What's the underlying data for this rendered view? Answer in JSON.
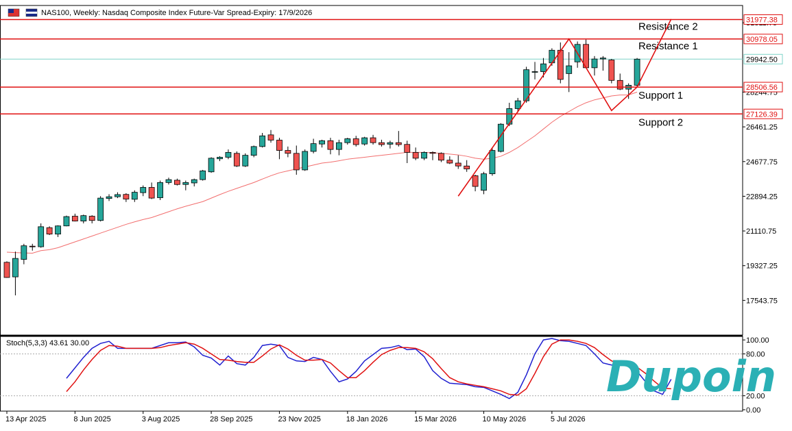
{
  "header": {
    "title": "NAS100, Weekly:  Nasdaq Composite Index Future-Var Spread-Expiry: 17/9/2026"
  },
  "colors": {
    "bull": "#26a69a",
    "bear": "#ef5350",
    "level_line": "#e01010",
    "ma_line": "#f26d6d",
    "current_line": "#7fd3c8",
    "stoch_main": "#1f1fd0",
    "stoch_signal": "#e01010",
    "logo": "#2bb0b5"
  },
  "logo": {
    "text": "Dupoin"
  },
  "chart_data": [
    {
      "type": "candlestick",
      "title": "NAS100, Weekly:  Nasdaq Composite Index Future-Var Spread-Expiry: 17/9/2026",
      "ylim": [
        15760,
        32700
      ],
      "y_ticks": [
        {
          "value": 31811.75,
          "label": "31811.75"
        },
        {
          "value": 28244.75,
          "label": "28244.75"
        },
        {
          "value": 26461.25,
          "label": "26461.25"
        },
        {
          "value": 24677.75,
          "label": "24677.75"
        },
        {
          "value": 22894.25,
          "label": "22894.25"
        },
        {
          "value": 21110.75,
          "label": "21110.75"
        },
        {
          "value": 19327.25,
          "label": "19327.25"
        },
        {
          "value": 17543.75,
          "label": "17543.75"
        }
      ],
      "x_ticks": [
        {
          "index": 0,
          "label": "13 Apr 2025"
        },
        {
          "index": 8,
          "label": "8 Jun 2025"
        },
        {
          "index": 16,
          "label": "3 Aug 2025"
        },
        {
          "index": 24,
          "label": "28 Sep 2025"
        },
        {
          "index": 32,
          "label": "23 Nov 2025"
        },
        {
          "index": 40,
          "label": "18 Jan 2026"
        },
        {
          "index": 48,
          "label": "15 Mar 2026"
        },
        {
          "index": 56,
          "label": "10 May 2026"
        },
        {
          "index": 64,
          "label": "5 Jul 2026"
        }
      ],
      "candles": [
        {
          "o": 19500,
          "h": 19550,
          "l": 18700,
          "c": 18720
        },
        {
          "o": 18750,
          "h": 20050,
          "l": 17800,
          "c": 19700
        },
        {
          "o": 19650,
          "h": 20450,
          "l": 19400,
          "c": 20350
        },
        {
          "o": 20330,
          "h": 20450,
          "l": 20100,
          "c": 20300
        },
        {
          "o": 20300,
          "h": 21500,
          "l": 20250,
          "c": 21330
        },
        {
          "o": 21280,
          "h": 21350,
          "l": 20900,
          "c": 20950
        },
        {
          "o": 20950,
          "h": 21400,
          "l": 20800,
          "c": 21370
        },
        {
          "o": 21370,
          "h": 21900,
          "l": 21350,
          "c": 21850
        },
        {
          "o": 21870,
          "h": 22000,
          "l": 21600,
          "c": 21620
        },
        {
          "o": 21620,
          "h": 21950,
          "l": 21500,
          "c": 21900
        },
        {
          "o": 21870,
          "h": 21920,
          "l": 21500,
          "c": 21650
        },
        {
          "o": 21650,
          "h": 22900,
          "l": 21600,
          "c": 22800
        },
        {
          "o": 22780,
          "h": 23000,
          "l": 22650,
          "c": 22870
        },
        {
          "o": 22870,
          "h": 23100,
          "l": 22800,
          "c": 22980
        },
        {
          "o": 22990,
          "h": 23050,
          "l": 22600,
          "c": 22750
        },
        {
          "o": 22740,
          "h": 23200,
          "l": 22600,
          "c": 23100
        },
        {
          "o": 23080,
          "h": 23450,
          "l": 22900,
          "c": 23350
        },
        {
          "o": 23350,
          "h": 23600,
          "l": 22750,
          "c": 22800
        },
        {
          "o": 22820,
          "h": 23700,
          "l": 22700,
          "c": 23600
        },
        {
          "o": 23600,
          "h": 23850,
          "l": 23500,
          "c": 23750
        },
        {
          "o": 23720,
          "h": 23800,
          "l": 23450,
          "c": 23500
        },
        {
          "o": 23500,
          "h": 23700,
          "l": 23200,
          "c": 23600
        },
        {
          "o": 23580,
          "h": 23800,
          "l": 23400,
          "c": 23750
        },
        {
          "o": 23750,
          "h": 24250,
          "l": 23700,
          "c": 24200
        },
        {
          "o": 24150,
          "h": 24900,
          "l": 24100,
          "c": 24850
        },
        {
          "o": 24820,
          "h": 24950,
          "l": 24700,
          "c": 24900
        },
        {
          "o": 24900,
          "h": 25300,
          "l": 24800,
          "c": 25150
        },
        {
          "o": 25100,
          "h": 25200,
          "l": 24400,
          "c": 24450
        },
        {
          "o": 24450,
          "h": 25100,
          "l": 24400,
          "c": 25000
        },
        {
          "o": 25000,
          "h": 25500,
          "l": 24900,
          "c": 25450
        },
        {
          "o": 25450,
          "h": 26150,
          "l": 25400,
          "c": 26000
        },
        {
          "o": 26050,
          "h": 26300,
          "l": 25650,
          "c": 25780
        },
        {
          "o": 25780,
          "h": 25900,
          "l": 24800,
          "c": 25250
        },
        {
          "o": 25250,
          "h": 25450,
          "l": 24900,
          "c": 25100
        },
        {
          "o": 25100,
          "h": 25500,
          "l": 24000,
          "c": 24250
        },
        {
          "o": 24250,
          "h": 25300,
          "l": 24200,
          "c": 25200
        },
        {
          "o": 25200,
          "h": 25850,
          "l": 25100,
          "c": 25600
        },
        {
          "o": 25580,
          "h": 25800,
          "l": 25400,
          "c": 25750
        },
        {
          "o": 25750,
          "h": 25900,
          "l": 25050,
          "c": 25300
        },
        {
          "o": 25300,
          "h": 25800,
          "l": 25000,
          "c": 25650
        },
        {
          "o": 25650,
          "h": 25900,
          "l": 25550,
          "c": 25850
        },
        {
          "o": 25850,
          "h": 26000,
          "l": 25450,
          "c": 25550
        },
        {
          "o": 25580,
          "h": 25950,
          "l": 25500,
          "c": 25900
        },
        {
          "o": 25900,
          "h": 26050,
          "l": 25550,
          "c": 25650
        },
        {
          "o": 25650,
          "h": 25800,
          "l": 25450,
          "c": 25550
        },
        {
          "o": 25570,
          "h": 25750,
          "l": 25350,
          "c": 25650
        },
        {
          "o": 25650,
          "h": 26250,
          "l": 25450,
          "c": 25550
        },
        {
          "o": 25560,
          "h": 25750,
          "l": 24600,
          "c": 25150
        },
        {
          "o": 25150,
          "h": 25400,
          "l": 24750,
          "c": 24850
        },
        {
          "o": 24850,
          "h": 25200,
          "l": 24750,
          "c": 25150
        },
        {
          "o": 25150,
          "h": 25200,
          "l": 24750,
          "c": 25100
        },
        {
          "o": 25100,
          "h": 25150,
          "l": 24650,
          "c": 24750
        },
        {
          "o": 24750,
          "h": 24950,
          "l": 24550,
          "c": 24600
        },
        {
          "o": 24600,
          "h": 25000,
          "l": 24300,
          "c": 24450
        },
        {
          "o": 24450,
          "h": 24750,
          "l": 24150,
          "c": 24300
        },
        {
          "o": 23950,
          "h": 24000,
          "l": 23150,
          "c": 23400
        },
        {
          "o": 23200,
          "h": 24150,
          "l": 23000,
          "c": 24050
        },
        {
          "o": 24050,
          "h": 25350,
          "l": 23950,
          "c": 25250
        },
        {
          "o": 25200,
          "h": 26650,
          "l": 25150,
          "c": 26600
        },
        {
          "o": 26600,
          "h": 27700,
          "l": 26500,
          "c": 27400
        },
        {
          "o": 27400,
          "h": 27950,
          "l": 27200,
          "c": 27800
        },
        {
          "o": 27800,
          "h": 29550,
          "l": 27700,
          "c": 29400
        },
        {
          "o": 29300,
          "h": 29800,
          "l": 28900,
          "c": 29300
        },
        {
          "o": 29300,
          "h": 30000,
          "l": 29000,
          "c": 29700
        },
        {
          "o": 29750,
          "h": 30500,
          "l": 29600,
          "c": 30400
        },
        {
          "o": 30400,
          "h": 30800,
          "l": 28700,
          "c": 28900
        },
        {
          "o": 29200,
          "h": 30300,
          "l": 28250,
          "c": 29600
        },
        {
          "o": 29800,
          "h": 30850,
          "l": 29500,
          "c": 30700
        },
        {
          "o": 30700,
          "h": 30950,
          "l": 29500,
          "c": 29500
        },
        {
          "o": 29500,
          "h": 30100,
          "l": 29100,
          "c": 29950
        },
        {
          "o": 29950,
          "h": 30100,
          "l": 29350,
          "c": 30000
        },
        {
          "o": 29900,
          "h": 29950,
          "l": 28700,
          "c": 28850
        },
        {
          "o": 28850,
          "h": 29200,
          "l": 28350,
          "c": 28400
        },
        {
          "o": 28400,
          "h": 28700,
          "l": 27900,
          "c": 28600
        },
        {
          "o": 28600,
          "h": 30000,
          "l": 28500,
          "c": 29942.5
        }
      ],
      "moving_average": [
        20020,
        20000,
        19980,
        19970,
        20100,
        20150,
        20250,
        20400,
        20550,
        20700,
        20850,
        21000,
        21150,
        21300,
        21450,
        21580,
        21700,
        21800,
        21950,
        22100,
        22250,
        22380,
        22500,
        22620,
        22800,
        22980,
        23150,
        23300,
        23450,
        23600,
        23780,
        23950,
        24100,
        24200,
        24300,
        24400,
        24500,
        24600,
        24650,
        24720,
        24800,
        24850,
        24900,
        24950,
        25000,
        25050,
        25100,
        25150,
        25150,
        25150,
        25130,
        25100,
        25060,
        25020,
        24950,
        24850,
        24800,
        24850,
        24950,
        25150,
        25400,
        25700,
        26000,
        26350,
        26700,
        27000,
        27250,
        27500,
        27700,
        27850,
        27950,
        28050,
        28100,
        28100,
        28250
      ],
      "levels": [
        {
          "value": 31977.38,
          "label": "Resistance 2",
          "price_label": "31977.38"
        },
        {
          "value": 30978.05,
          "label": "Resistance 1",
          "price_label": "30978.05"
        },
        {
          "value": 28506.56,
          "label": "Support 1",
          "price_label": "28506.56"
        },
        {
          "value": 27126.39,
          "label": "Support 2",
          "price_label": "27126.39"
        }
      ],
      "current_price": {
        "value": 29942.5,
        "label": "29942.50"
      },
      "zigzag": [
        {
          "i": 53,
          "v": 22900
        },
        {
          "i": 66,
          "v": 30978.05
        },
        {
          "i": 71,
          "v": 27300
        },
        {
          "i": 74,
          "v": 28506.56
        },
        {
          "i": 78,
          "v": 32000
        }
      ]
    },
    {
      "type": "line",
      "title": "Stoch(5,3,3) 43.61 30.00",
      "ylim": [
        -2,
        105
      ],
      "y_ticks": [
        {
          "value": 100,
          "label": "100.00"
        },
        {
          "value": 80,
          "label": "80.00"
        },
        {
          "value": 20,
          "label": "20.00"
        },
        {
          "value": 0,
          "label": "0.00"
        }
      ],
      "levels": [
        80,
        20
      ],
      "series": [
        {
          "key": "main",
          "values": [
            45,
            60,
            75,
            88,
            95,
            98,
            88,
            88,
            88,
            88,
            88,
            92,
            96,
            96,
            97,
            90,
            78,
            74,
            64,
            77,
            66,
            64,
            75,
            92,
            94,
            92,
            75,
            70,
            69,
            75,
            72,
            55,
            40,
            44,
            55,
            70,
            79,
            88,
            89,
            92,
            86,
            87,
            76,
            56,
            45,
            38,
            37,
            36,
            33,
            32,
            27,
            22,
            16,
            25,
            50,
            80,
            100,
            102,
            99,
            98,
            95,
            92,
            80,
            67,
            64,
            66,
            62,
            55,
            40,
            27,
            22,
            43.61
          ]
        },
        {
          "key": "signal",
          "values": [
            26,
            40,
            57,
            72,
            85,
            92,
            91,
            88,
            88,
            88,
            88,
            89,
            92,
            94,
            96,
            94,
            88,
            80,
            72,
            71,
            69,
            68,
            68,
            77,
            87,
            93,
            87,
            78,
            71,
            71,
            72,
            67,
            56,
            46,
            46,
            56,
            68,
            79,
            85,
            89,
            89,
            88,
            83,
            73,
            59,
            46,
            40,
            37,
            35,
            33,
            30,
            27,
            22,
            21,
            30,
            52,
            76,
            94,
            100,
            100,
            98,
            95,
            89,
            79,
            70,
            66,
            64,
            61,
            52,
            41,
            31,
            30
          ]
        }
      ]
    }
  ],
  "x_offset_stoch": 7
}
